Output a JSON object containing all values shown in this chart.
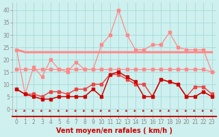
{
  "x": [
    0,
    1,
    2,
    3,
    4,
    5,
    6,
    7,
    8,
    9,
    10,
    11,
    12,
    13,
    14,
    15,
    16,
    17,
    18,
    19,
    20,
    21,
    22,
    23
  ],
  "series_rafales_max": [
    24,
    6,
    17,
    13,
    20,
    16,
    15,
    19,
    16,
    16,
    26,
    30,
    40,
    30,
    24,
    24,
    26,
    26,
    31,
    25,
    24,
    24,
    24,
    15
  ],
  "series_avg_high": [
    24,
    23,
    23,
    23,
    23,
    23,
    23,
    23,
    23,
    23,
    23,
    23,
    23,
    23,
    23,
    23,
    23,
    23,
    23,
    23,
    23,
    23,
    23,
    23
  ],
  "series_avg_mid": [
    16,
    16,
    16,
    16,
    16,
    16,
    16,
    16,
    16,
    16,
    16,
    16,
    16,
    16,
    16,
    16,
    16,
    16,
    16,
    16,
    16,
    16,
    16,
    15
  ],
  "series_moyen": [
    8,
    6,
    6,
    5,
    7,
    7,
    6,
    8,
    8,
    10,
    10,
    14,
    14,
    12,
    10,
    10,
    5,
    12,
    11,
    10,
    5,
    9,
    9,
    6
  ],
  "series_inst": [
    8,
    6,
    5,
    4,
    4,
    5,
    5,
    5,
    5,
    8,
    5,
    14,
    15,
    13,
    11,
    5,
    5,
    12,
    11,
    10,
    5,
    5,
    7,
    5
  ],
  "color_dark_red": "#cc0000",
  "color_medium_red": "#ee4444",
  "color_light_red": "#ff8888",
  "color_very_light": "#ffbbbb",
  "background_color": "#cef0ee",
  "grid_color": "#aadddd",
  "xlabel": "Vent moyen/en rafales ( km/h )",
  "yticks": [
    0,
    5,
    10,
    15,
    20,
    25,
    30,
    35,
    40
  ],
  "ylim": [
    -3,
    43
  ],
  "xlim": [
    -0.5,
    23.5
  ],
  "axis_fontsize": 5.5,
  "label_fontsize": 7
}
